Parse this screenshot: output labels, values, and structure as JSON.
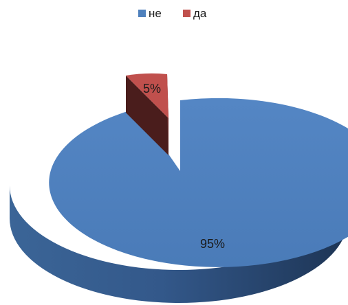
{
  "chart_data": {
    "type": "pie",
    "style": "3d-exploded",
    "legend_position": "top",
    "title": "",
    "series": [
      {
        "name": "не",
        "value": 95,
        "label": "95%",
        "color": "#4f81bd"
      },
      {
        "name": "да",
        "value": 5,
        "label": "5%",
        "color": "#c0504d"
      }
    ]
  }
}
